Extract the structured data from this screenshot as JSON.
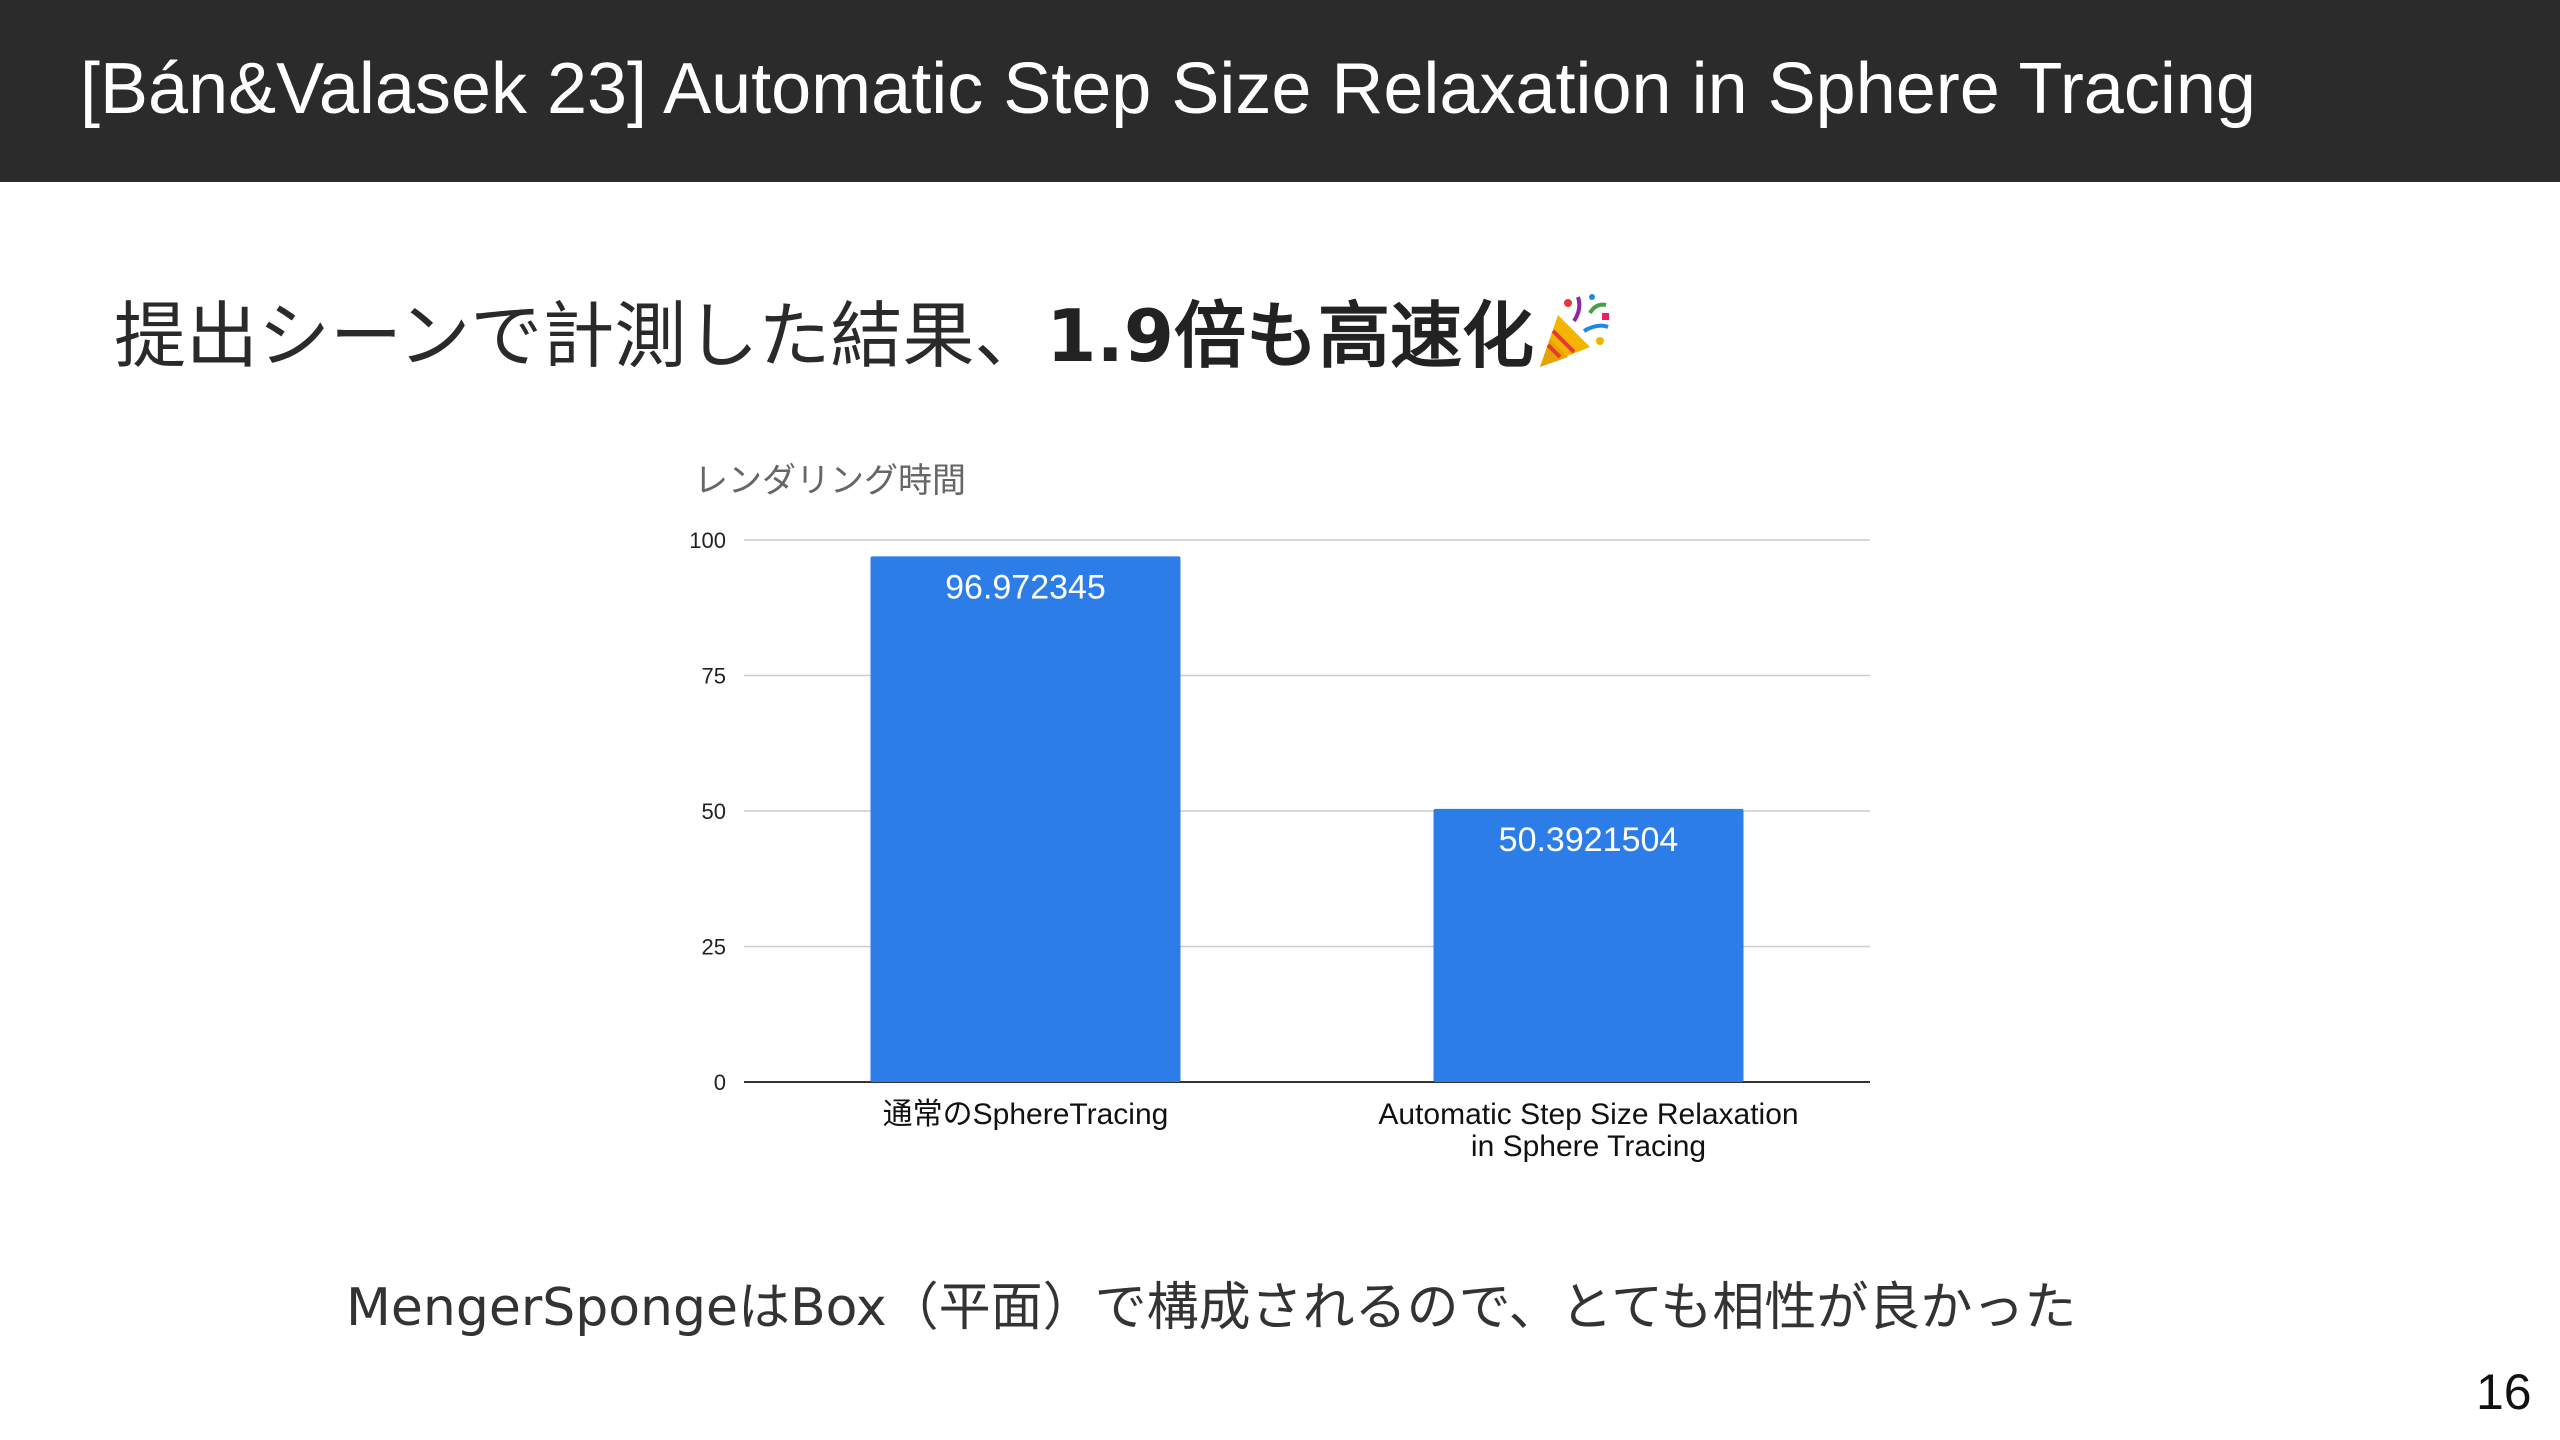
{
  "slide": {
    "title": "[Bán&Valasek 23] Automatic Step Size Relaxation in Sphere Tracing",
    "headline_prefix": "提出シーンで計測した結果、",
    "headline_emphasis": "1.9倍も高速化",
    "headline_icon": "party-popper-icon",
    "note": "MengerSpongeはBox（平面）で構成されるので、とても相性が良かった",
    "page_number": "16"
  },
  "colors": {
    "header_bg": "#2b2b2b",
    "bar": "#2d7de9",
    "grid": "#cccccc",
    "axis": "#333333"
  },
  "chart_data": {
    "type": "bar",
    "title": "レンダリング時間",
    "xlabel": "",
    "ylabel": "",
    "ylim": [
      0,
      100
    ],
    "yticks": [
      0,
      25,
      50,
      75,
      100
    ],
    "grid": true,
    "categories": [
      [
        "通常のSphereTracing"
      ],
      [
        "Automatic Step Size Relaxation",
        "in Sphere Tracing"
      ]
    ],
    "values": [
      96.972345,
      50.3921504
    ],
    "data_labels": [
      "96.972345",
      "50.3921504"
    ]
  }
}
